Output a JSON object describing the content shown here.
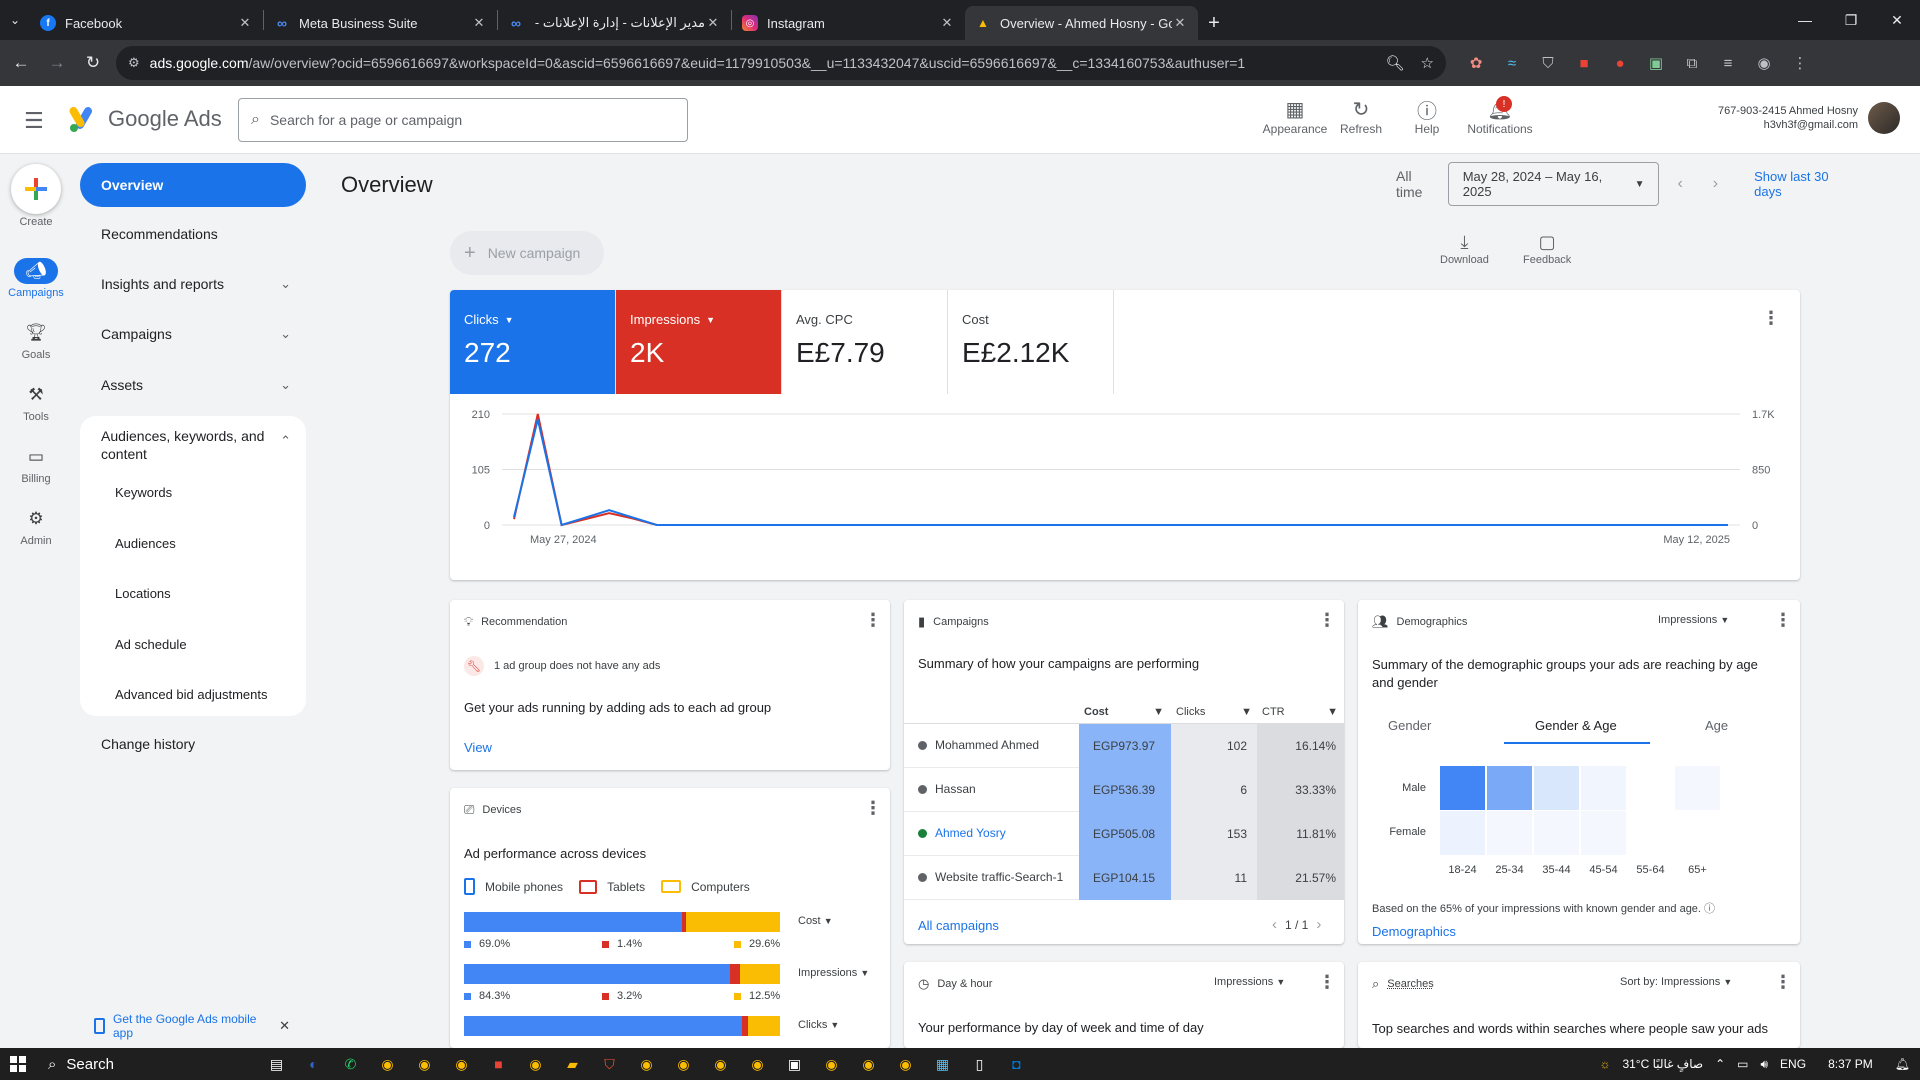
{
  "browser": {
    "tabs": [
      {
        "title": "Facebook",
        "fav": "f",
        "color": "#1877f2",
        "active": false
      },
      {
        "title": "Meta Business Suite",
        "fav": "∞",
        "color": "#0866ff",
        "active": false
      },
      {
        "title": "مدير الإعلانات - إدارة الإعلانات - اا",
        "fav": "∞",
        "color": "#0866ff",
        "active": false
      },
      {
        "title": "Instagram",
        "fav": "◎",
        "color": "#e1306c",
        "active": false
      },
      {
        "title": "Overview - Ahmed Hosny - Goo",
        "fav": "▲",
        "color": "#fbbc04",
        "active": true
      }
    ],
    "url_host": "ads.google.com",
    "url_rest": "/aw/overview?ocid=6596616697&workspaceId=0&ascid=6596616697&euid=1179910503&__u=1133432047&uscid=6596616697&__c=1334160753&authuser=1"
  },
  "header": {
    "product": "Google Ads",
    "search_placeholder": "Search for a page or campaign",
    "actions": {
      "appearance": "Appearance",
      "refresh": "Refresh",
      "help": "Help",
      "notifications": "Notifications"
    },
    "notif_count": "!",
    "account_line1": "767-903-2415 Ahmed Hosny",
    "account_line2": "h3vh3f@gmail.com"
  },
  "rail": {
    "create": "Create",
    "campaigns": "Campaigns",
    "goals": "Goals",
    "tools": "Tools",
    "billing": "Billing",
    "admin": "Admin"
  },
  "sidenav": {
    "overview": "Overview",
    "recommendations": "Recommendations",
    "insights": "Insights and reports",
    "campaigns": "Campaigns",
    "assets": "Assets",
    "audiences_group": "Audiences, keywords, and content",
    "sub": [
      "Keywords",
      "Audiences",
      "Locations",
      "Ad schedule",
      "Advanced bid adjustments"
    ],
    "change_history": "Change history",
    "mobile_app": "Get the Google Ads mobile app"
  },
  "main": {
    "title": "Overview",
    "all_time": "All time",
    "date_range": "May 28, 2024 – May 16, 2025",
    "show_last": "Show last 30 days",
    "new_campaign": "New campaign",
    "download": "Download",
    "feedback": "Feedback"
  },
  "metrics": [
    {
      "label": "Clicks",
      "value": "272"
    },
    {
      "label": "Impressions",
      "value": "2K"
    },
    {
      "label": "Avg. CPC",
      "value": "E£7.79"
    },
    {
      "label": "Cost",
      "value": "E£2.12K"
    }
  ],
  "chart_data": {
    "type": "line",
    "x_labels": [
      "May 27, 2024",
      "May 12, 2025"
    ],
    "left_axis": {
      "ticks": [
        "210",
        "105",
        "0"
      ],
      "ylim": [
        0,
        210
      ]
    },
    "right_axis": {
      "ticks": [
        "1.7K",
        "850",
        "0"
      ],
      "ylim": [
        0,
        1700
      ]
    },
    "series": [
      {
        "name": "Clicks",
        "color": "#1a73e8",
        "axis": "left",
        "values": [
          15,
          200,
          0,
          14,
          28,
          14,
          0,
          0,
          0,
          0,
          0,
          0,
          0,
          0,
          0,
          0,
          0,
          0,
          0,
          0,
          0,
          0,
          0,
          0,
          0,
          0,
          0,
          0,
          0,
          0,
          0,
          0,
          0,
          0,
          0,
          0,
          0,
          0,
          0,
          0,
          0,
          0,
          0,
          0,
          0,
          0,
          0,
          0,
          0,
          0,
          0,
          0
        ]
      },
      {
        "name": "Impressions",
        "color": "#d93025",
        "axis": "right",
        "values": [
          90,
          1700,
          0,
          90,
          180,
          100,
          0,
          0,
          0,
          0,
          0,
          0,
          0,
          0,
          0,
          0,
          0,
          0,
          0,
          0,
          0,
          0,
          0,
          0,
          0,
          0,
          0,
          0,
          0,
          0,
          0,
          0,
          0,
          0,
          0,
          0,
          0,
          0,
          0,
          0,
          0,
          0,
          0,
          0,
          0,
          0,
          0,
          0,
          0,
          0,
          0,
          0
        ]
      }
    ]
  },
  "recommendation": {
    "title": "Recommendation",
    "note": "1 ad group does not have any ads",
    "body": "Get your ads running by adding ads to each ad group",
    "link": "View"
  },
  "campaigns_card": {
    "title": "Campaigns",
    "summary": "Summary of how your campaigns are performing",
    "headers": [
      "Cost",
      "Clicks",
      "CTR"
    ],
    "rows": [
      {
        "name": "Mohammed Ahmed",
        "cost": "EGP973.97",
        "clicks": "102",
        "ctr": "16.14%",
        "status": "#5f6368"
      },
      {
        "name": "Hassan",
        "cost": "EGP536.39",
        "clicks": "6",
        "ctr": "33.33%",
        "status": "#5f6368"
      },
      {
        "name": "Ahmed Yosry",
        "cost": "EGP505.08",
        "clicks": "153",
        "ctr": "11.81%",
        "status": "#188038"
      },
      {
        "name": "Website traffic-Search-1",
        "cost": "EGP104.15",
        "clicks": "11",
        "ctr": "21.57%",
        "status": "#5f6368"
      }
    ],
    "link": "All campaigns",
    "pager": "1 / 1"
  },
  "demographics": {
    "title": "Demographics",
    "metric": "Impressions",
    "summary": "Summary of the demographic groups your ads are reaching by age and gender",
    "tabs": [
      "Gender",
      "Gender & Age",
      "Age"
    ],
    "rows": [
      "Male",
      "Female"
    ],
    "ages": [
      "18-24",
      "25-34",
      "35-44",
      "45-54",
      "55-64",
      "65+"
    ],
    "intensity": {
      "male": [
        1.0,
        0.7,
        0.2,
        0.08,
        0,
        0.03
      ],
      "female": [
        0.1,
        0.05,
        0.03,
        0.03,
        0,
        0
      ]
    },
    "footnote": "Based on the 65% of your impressions with known gender and age.",
    "link": "Demographics"
  },
  "devices": {
    "title": "Devices",
    "summary": "Ad performance across devices",
    "legend": [
      "Mobile phones",
      "Tablets",
      "Computers"
    ],
    "rows": [
      {
        "metric": "Cost",
        "mobile": 69.0,
        "tablet": 1.4,
        "computer": 29.6,
        "labels": [
          "69.0%",
          "1.4%",
          "29.6%"
        ]
      },
      {
        "metric": "Impressions",
        "mobile": 84.3,
        "tablet": 3.2,
        "computer": 12.5,
        "labels": [
          "84.3%",
          "3.2%",
          "12.5%"
        ]
      },
      {
        "metric": "Clicks",
        "mobile": 88.0,
        "tablet": 2.0,
        "computer": 10.0,
        "labels": [
          "",
          "",
          ""
        ]
      }
    ]
  },
  "dayhour": {
    "title": "Day & hour",
    "metric": "Impressions",
    "summary": "Your performance by day of week and time of day"
  },
  "searches": {
    "title": "Searches",
    "sort_label": "Sort by: Impressions",
    "summary": "Top searches and words within searches where people saw your ads"
  },
  "taskbar": {
    "search": "Search",
    "weather": "31°C  صافٍ غالبًا",
    "lang": "ENG",
    "time": "8:37 PM"
  }
}
